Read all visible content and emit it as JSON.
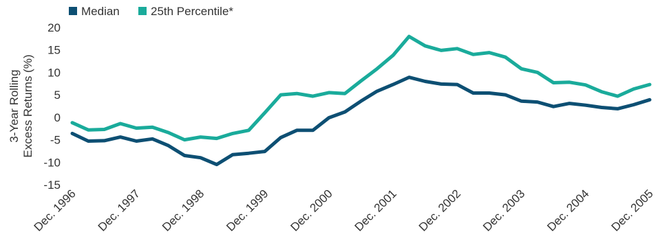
{
  "chart_data": {
    "type": "line",
    "title": "",
    "xlabel": "",
    "ylabel": "3-Year Rolling Excess Returns (%)",
    "ylabel_lines": [
      "3-Year Rolling",
      "Excess Returns (%)"
    ],
    "ylim": [
      -15,
      20
    ],
    "yticks": [
      -15,
      -10,
      -5,
      0,
      5,
      10,
      15,
      20
    ],
    "ytick_labels": [
      "-15",
      "-10",
      "-5",
      "0",
      "5",
      "10",
      "15",
      "20"
    ],
    "grid": false,
    "legend_position": "top-left",
    "x_tick_labels": [
      "Dec. 1996",
      "Dec. 1997",
      "Dec. 1998",
      "Dec. 1999",
      "Dec. 2000",
      "Dec. 2001",
      "Dec. 2002",
      "Dec. 2003",
      "Dec. 2004",
      "Dec. 2005"
    ],
    "x_tick_index": [
      0,
      4,
      8,
      12,
      16,
      20,
      24,
      28,
      32,
      36
    ],
    "series": [
      {
        "name": "Median",
        "color": "#0d4f73",
        "values": [
          -3.6,
          -5.3,
          -5.2,
          -4.4,
          -5.3,
          -4.8,
          -6.3,
          -8.5,
          -9.0,
          -10.5,
          -8.3,
          -8.0,
          -7.6,
          -4.5,
          -2.9,
          -2.9,
          -0.1,
          1.2,
          3.6,
          5.8,
          7.3,
          8.9,
          8.0,
          7.4,
          7.3,
          5.4,
          5.4,
          5.0,
          3.6,
          3.4,
          2.4,
          3.1,
          2.7,
          2.2,
          1.9,
          2.8,
          3.9
        ]
      },
      {
        "name": "25th Percentile*",
        "color": "#1aab9b",
        "values": [
          -1.2,
          -2.8,
          -2.7,
          -1.4,
          -2.4,
          -2.2,
          -3.4,
          -5.0,
          -4.4,
          -4.7,
          -3.6,
          -2.9,
          1.0,
          5.0,
          5.3,
          4.7,
          5.5,
          5.3,
          8.1,
          10.8,
          13.8,
          18.0,
          15.9,
          14.9,
          15.3,
          14.0,
          14.4,
          13.4,
          10.8,
          10.0,
          7.7,
          7.8,
          7.2,
          5.7,
          4.7,
          6.3,
          7.3
        ]
      }
    ]
  }
}
